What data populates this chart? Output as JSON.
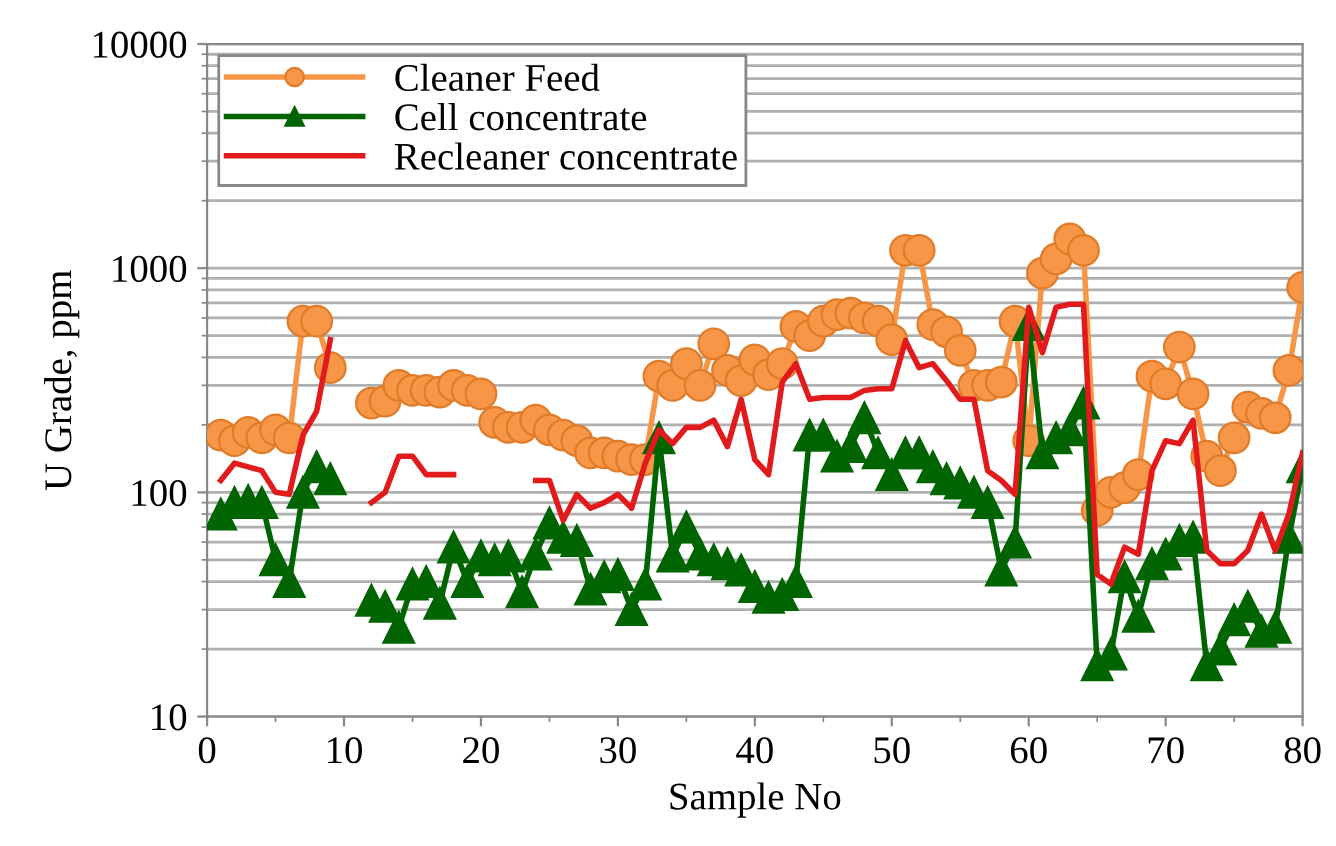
{
  "chart_data": {
    "type": "line",
    "xlabel": "Sample No",
    "ylabel": "U Grade, ppm",
    "log": "y",
    "xlim": [
      0,
      80
    ],
    "xticks": [
      0,
      10,
      20,
      30,
      40,
      50,
      60,
      70,
      80
    ],
    "ylim": [
      10,
      10000
    ],
    "yticks": [
      10,
      100,
      1000,
      10000
    ],
    "grid": "y",
    "legend": "top left",
    "x": [
      1,
      2,
      3,
      4,
      5,
      6,
      7,
      8,
      9,
      10,
      11,
      12,
      13,
      14,
      15,
      16,
      17,
      18,
      19,
      20,
      21,
      22,
      23,
      24,
      25,
      26,
      27,
      28,
      29,
      30,
      31,
      32,
      33,
      34,
      35,
      36,
      37,
      38,
      39,
      40,
      41,
      42,
      43,
      44,
      45,
      46,
      47,
      48,
      49,
      50,
      51,
      52,
      53,
      54,
      55,
      56,
      57,
      58,
      59,
      60,
      61,
      62,
      63,
      64,
      65,
      66,
      67,
      68,
      69,
      70,
      71,
      72,
      73,
      74,
      75,
      76,
      77,
      78,
      79,
      80
    ],
    "series": [
      {
        "name": "Cleaner Feed",
        "color": "#f79646",
        "marker": "circle",
        "values": [
          180,
          170,
          185,
          175,
          190,
          175,
          580,
          580,
          360,
          null,
          null,
          250,
          255,
          300,
          285,
          285,
          280,
          300,
          285,
          275,
          205,
          195,
          195,
          210,
          190,
          180,
          170,
          150,
          150,
          145,
          140,
          140,
          330,
          300,
          375,
          300,
          460,
          350,
          315,
          390,
          335,
          375,
          550,
          500,
          580,
          620,
          630,
          600,
          580,
          480,
          1200,
          1200,
          560,
          520,
          430,
          300,
          300,
          310,
          580,
          170,
          950,
          1100,
          1350,
          1200,
          83,
          100,
          105,
          120,
          330,
          305,
          445,
          275,
          145,
          125,
          175,
          240,
          225,
          215,
          350,
          820
        ]
      },
      {
        "name": "Cell concentrate",
        "color": "#006400",
        "marker": "triangle",
        "values": [
          80,
          90,
          92,
          90,
          50,
          40,
          100,
          130,
          115,
          null,
          null,
          33,
          31,
          25,
          39,
          40,
          32,
          57,
          40,
          52,
          50,
          52,
          36,
          53,
          73,
          63,
          61,
          37,
          42,
          43,
          30,
          39,
          175,
          52,
          70,
          53,
          50,
          48,
          45,
          38,
          34,
          35,
          40,
          180,
          180,
          145,
          160,
          215,
          150,
          120,
          150,
          150,
          130,
          115,
          110,
          100,
          90,
          45,
          60,
          560,
          150,
          175,
          190,
          250,
          17,
          19,
          42,
          28,
          48,
          53,
          61,
          63,
          17,
          20,
          27,
          31,
          24,
          25,
          63,
          130
        ]
      },
      {
        "name": "Recleaner concentrate",
        "color": "#e31a1c",
        "marker": "none",
        "values": [
          113,
          135,
          130,
          125,
          100,
          98,
          180,
          230,
          480,
          null,
          null,
          90,
          100,
          145,
          145,
          120,
          120,
          120,
          null,
          null,
          null,
          null,
          null,
          113,
          113,
          75,
          98,
          85,
          90,
          98,
          85,
          135,
          190,
          165,
          195,
          195,
          210,
          160,
          260,
          140,
          120,
          310,
          375,
          260,
          265,
          265,
          265,
          285,
          290,
          290,
          475,
          360,
          375,
          315,
          260,
          260,
          125,
          113,
          98,
          670,
          420,
          670,
          690,
          690,
          43,
          39,
          57,
          53,
          125,
          170,
          165,
          210,
          55,
          48,
          48,
          55,
          80,
          55,
          80,
          150
        ]
      }
    ]
  }
}
